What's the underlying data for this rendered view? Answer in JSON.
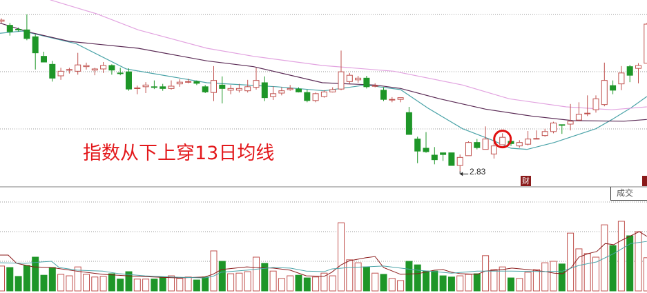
{
  "chart_data": [
    {
      "type": "candlestick",
      "title": "",
      "annotation": "指数从下上穿13日均线",
      "low_label": "2.83",
      "grid": true,
      "colors": {
        "up": "#c0504d",
        "down": "#1e9628",
        "ma13": "#4aa3a8",
        "ma_long": "#5a2a55",
        "ma_longest": "#e2a3e0",
        "highlight": "#e01010"
      },
      "highlight_day": 60,
      "candles_ohlc": [
        [
          3.091,
          3.096,
          3.088,
          3.093
        ],
        [
          3.084,
          3.088,
          3.066,
          3.073
        ],
        [
          3.077,
          3.08,
          3.073,
          3.076
        ],
        [
          3.076,
          3.103,
          3.058,
          3.061
        ],
        [
          3.064,
          3.068,
          3.007,
          3.036
        ],
        [
          3.03,
          3.038,
          3.02,
          3.02
        ],
        [
          3.016,
          3.022,
          2.986,
          2.992
        ],
        [
          2.996,
          3.01,
          2.989,
          3.004
        ],
        [
          3.006,
          3.01,
          3.0,
          3.007
        ],
        [
          3.004,
          3.036,
          2.998,
          3.015
        ],
        [
          3.012,
          3.019,
          3.007,
          3.014
        ],
        [
          3.006,
          3.01,
          2.997,
          3.008
        ],
        [
          3.008,
          3.02,
          3.001,
          3.014
        ],
        [
          3.014,
          3.016,
          2.998,
          3.006
        ],
        [
          3.001,
          3.01,
          2.997,
          3.0
        ],
        [
          3.003,
          3.009,
          2.97,
          2.973
        ],
        [
          2.974,
          2.979,
          2.964,
          2.975
        ],
        [
          2.977,
          2.985,
          2.966,
          2.98
        ],
        [
          2.977,
          2.988,
          2.973,
          2.976
        ],
        [
          2.977,
          2.982,
          2.97,
          2.974
        ],
        [
          2.974,
          2.988,
          2.972,
          2.978
        ],
        [
          2.982,
          2.99,
          2.977,
          2.985
        ],
        [
          2.985,
          2.991,
          2.983,
          2.986
        ],
        [
          2.986,
          2.988,
          2.98,
          2.983
        ],
        [
          2.977,
          2.98,
          2.966,
          2.968
        ],
        [
          2.967,
          3.013,
          2.952,
          2.988
        ],
        [
          2.98,
          2.995,
          2.948,
          2.974
        ],
        [
          2.971,
          2.98,
          2.964,
          2.974
        ],
        [
          2.971,
          2.982,
          2.967,
          2.974
        ],
        [
          2.97,
          2.989,
          2.967,
          2.977
        ],
        [
          2.976,
          3.01,
          2.972,
          2.988
        ],
        [
          2.984,
          2.995,
          2.952,
          2.958
        ],
        [
          2.96,
          2.978,
          2.954,
          2.965
        ],
        [
          2.966,
          2.976,
          2.962,
          2.97
        ],
        [
          2.972,
          2.98,
          2.97,
          2.974
        ],
        [
          2.973,
          2.976,
          2.967,
          2.968
        ],
        [
          2.967,
          2.972,
          2.95,
          2.953
        ],
        [
          2.953,
          2.967,
          2.95,
          2.965
        ],
        [
          2.96,
          2.971,
          2.958,
          2.968
        ],
        [
          2.968,
          2.976,
          2.967,
          2.972
        ],
        [
          2.973,
          3.04,
          2.971,
          3.003
        ],
        [
          2.986,
          3.001,
          2.982,
          2.997
        ],
        [
          2.989,
          2.996,
          2.984,
          2.992
        ],
        [
          2.992,
          2.996,
          2.974,
          2.977
        ],
        [
          2.978,
          2.983,
          2.976,
          2.979
        ],
        [
          2.971,
          2.976,
          2.952,
          2.955
        ],
        [
          2.954,
          2.959,
          2.95,
          2.955
        ],
        [
          2.955,
          2.958,
          2.95,
          2.958
        ],
        [
          2.932,
          2.942,
          2.894,
          2.894
        ],
        [
          2.886,
          2.89,
          2.844,
          2.865
        ],
        [
          2.87,
          2.898,
          2.862,
          2.864
        ],
        [
          2.858,
          2.872,
          2.842,
          2.85
        ],
        [
          2.862,
          2.862,
          2.848,
          2.859
        ],
        [
          2.862,
          2.862,
          2.84,
          2.84
        ],
        [
          2.84,
          2.859,
          2.83,
          2.854
        ],
        [
          2.857,
          2.882,
          2.857,
          2.88
        ],
        [
          2.88,
          2.886,
          2.868,
          2.871
        ],
        [
          2.868,
          2.908,
          2.868,
          2.886
        ],
        [
          2.86,
          2.884,
          2.852,
          2.874
        ],
        [
          2.876,
          2.896,
          2.876,
          2.889
        ],
        [
          2.882,
          2.883,
          2.874,
          2.878
        ],
        [
          2.874,
          2.884,
          2.871,
          2.88
        ],
        [
          2.877,
          2.9,
          2.875,
          2.886
        ],
        [
          2.886,
          2.901,
          2.886,
          2.887
        ],
        [
          2.892,
          2.904,
          2.89,
          2.899
        ],
        [
          2.899,
          2.916,
          2.896,
          2.914
        ],
        [
          2.911,
          2.911,
          2.895,
          2.91
        ],
        [
          2.912,
          2.947,
          2.901,
          2.917
        ],
        [
          2.919,
          2.95,
          2.917,
          2.929
        ],
        [
          2.93,
          2.962,
          2.926,
          2.931
        ],
        [
          2.937,
          2.962,
          2.932,
          2.956
        ],
        [
          2.946,
          3.019,
          2.943,
          2.988
        ],
        [
          2.979,
          2.988,
          2.964,
          2.971
        ],
        [
          2.982,
          3.013,
          2.971,
          3.001
        ],
        [
          3.012,
          3.015,
          2.985,
          2.997
        ],
        [
          3.009,
          3.018,
          2.983,
          3.014
        ],
        [
          3.018,
          3.088,
          3.018,
          3.086
        ]
      ],
      "moving_averages": [
        {
          "role": "ma13",
          "points": [
            [
              0.8,
              3.07
            ],
            [
              3.5,
              3.074
            ],
            [
              9.8,
              3.052
            ],
            [
              15.7,
              3.008
            ],
            [
              25.2,
              2.984
            ],
            [
              33.4,
              2.977
            ],
            [
              39.0,
              2.97
            ],
            [
              43.9,
              2.98
            ],
            [
              48.0,
              2.972
            ],
            [
              51.2,
              2.94
            ],
            [
              55.3,
              2.904
            ],
            [
              58.8,
              2.884
            ],
            [
              61.0,
              2.87
            ],
            [
              62.9,
              2.868
            ],
            [
              66.1,
              2.88
            ],
            [
              71.0,
              2.904
            ],
            [
              72.9,
              2.92
            ],
            [
              75.1,
              2.94
            ],
            [
              77.0,
              2.96
            ]
          ]
        },
        {
          "role": "ma_long",
          "points": [
            [
              0.8,
              3.088
            ],
            [
              4.3,
              3.072
            ],
            [
              9.0,
              3.056
            ],
            [
              17.1,
              3.044
            ],
            [
              25.2,
              3.022
            ],
            [
              30.7,
              3.012
            ],
            [
              38.8,
              2.984
            ],
            [
              45.0,
              2.98
            ],
            [
              48.0,
              2.974
            ],
            [
              52.6,
              2.956
            ],
            [
              58.0,
              2.938
            ],
            [
              63.4,
              2.926
            ],
            [
              68.3,
              2.918
            ],
            [
              74.3,
              2.917
            ],
            [
              77.0,
              2.92
            ]
          ]
        },
        {
          "role": "ma_longest",
          "points": [
            [
              5.5,
              3.145
            ],
            [
              6.8,
              3.128
            ],
            [
              12.2,
              3.104
            ],
            [
              17.1,
              3.076
            ],
            [
              25.2,
              3.044
            ],
            [
              30.7,
              3.03
            ],
            [
              38.8,
              3.014
            ],
            [
              47.2,
              3.004
            ],
            [
              55.3,
              2.98
            ],
            [
              60.8,
              2.956
            ],
            [
              67.5,
              2.942
            ],
            [
              72.9,
              2.937
            ],
            [
              77.0,
              2.942
            ]
          ]
        }
      ]
    },
    {
      "type": "bar",
      "title": "",
      "label": "成交",
      "grid": true,
      "volumes": [
        8.4,
        7.9,
        4.9,
        8.6,
        11.4,
        5.3,
        7.9,
        5.6,
        5.1,
        8.1,
        5.6,
        4.7,
        4.9,
        5.8,
        4.0,
        6.5,
        4.0,
        4.0,
        4.0,
        4.7,
        5.1,
        4.2,
        4.7,
        3.7,
        4.7,
        13.5,
        10.0,
        5.8,
        6.0,
        6.5,
        11.4,
        9.3,
        6.7,
        4.2,
        5.1,
        5.3,
        4.4,
        4.7,
        6.0,
        5.1,
        23.0,
        10.5,
        9.5,
        8.1,
        6.0,
        5.6,
        4.2,
        3.5,
        10.0,
        8.8,
        6.7,
        6.7,
        5.1,
        4.7,
        5.1,
        5.6,
        5.8,
        11.9,
        7.2,
        8.1,
        4.4,
        4.2,
        6.3,
        7.2,
        9.5,
        10.0,
        9.1,
        19.5,
        14.2,
        12.6,
        11.4,
        22.3,
        15.3,
        23.5,
        18.6,
        20.0,
        11.2
      ],
      "moving_averages": [
        {
          "role": "vol_ma_short",
          "color": "#8b1a1a",
          "points": [
            [
              0.8,
              12.1
            ],
            [
              1.8,
              12.1
            ],
            [
              2.8,
              9.3
            ],
            [
              4.8,
              8.1
            ],
            [
              6.9,
              7.9
            ],
            [
              9.8,
              6.7
            ],
            [
              12.9,
              5.6
            ],
            [
              15.9,
              5.1
            ],
            [
              18.9,
              4.7
            ],
            [
              21.9,
              4.4
            ],
            [
              24.9,
              4.7
            ],
            [
              25.9,
              5.6
            ],
            [
              26.9,
              7.2
            ],
            [
              29.9,
              8.1
            ],
            [
              30.9,
              7.9
            ],
            [
              33.0,
              7.7
            ],
            [
              35.0,
              7.0
            ],
            [
              36.9,
              5.1
            ],
            [
              39.0,
              4.9
            ],
            [
              39.9,
              6.3
            ],
            [
              41.0,
              8.8
            ],
            [
              42.0,
              10.2
            ],
            [
              43.9,
              11.2
            ],
            [
              45.0,
              11.6
            ],
            [
              46.0,
              7.9
            ],
            [
              48.0,
              5.6
            ],
            [
              50.0,
              5.8
            ],
            [
              52.0,
              7.0
            ],
            [
              53.0,
              7.2
            ],
            [
              54.0,
              6.3
            ],
            [
              55.1,
              5.8
            ],
            [
              57.0,
              5.6
            ],
            [
              58.0,
              6.7
            ],
            [
              60.0,
              7.2
            ],
            [
              61.1,
              7.7
            ],
            [
              63.0,
              7.2
            ],
            [
              65.1,
              6.5
            ],
            [
              66.1,
              6.0
            ],
            [
              67.1,
              5.8
            ],
            [
              68.1,
              7.9
            ],
            [
              69.0,
              11.4
            ],
            [
              70.1,
              12.6
            ],
            [
              71.1,
              13.3
            ],
            [
              72.1,
              16.0
            ],
            [
              73.1,
              15.6
            ],
            [
              74.1,
              17.2
            ],
            [
              75.1,
              18.6
            ],
            [
              76.1,
              20.0
            ],
            [
              77.0,
              18.4
            ]
          ]
        },
        {
          "role": "vol_ma_long",
          "color": "#4aa3a8",
          "points": [
            [
              0.8,
              9.5
            ],
            [
              3.8,
              9.3
            ],
            [
              5.8,
              9.8
            ],
            [
              6.9,
              10.0
            ],
            [
              7.8,
              7.9
            ],
            [
              9.9,
              7.0
            ],
            [
              12.9,
              6.7
            ],
            [
              14.9,
              5.8
            ],
            [
              17.9,
              5.1
            ],
            [
              20.9,
              4.7
            ],
            [
              24.9,
              4.4
            ],
            [
              25.9,
              4.9
            ],
            [
              26.9,
              6.3
            ],
            [
              29.9,
              7.0
            ],
            [
              33.0,
              7.9
            ],
            [
              35.0,
              7.7
            ],
            [
              36.9,
              6.7
            ],
            [
              39.0,
              6.5
            ],
            [
              39.9,
              7.4
            ],
            [
              42.0,
              7.9
            ],
            [
              46.0,
              8.4
            ],
            [
              50.0,
              7.0
            ],
            [
              54.0,
              6.0
            ],
            [
              57.0,
              6.7
            ],
            [
              61.1,
              6.7
            ],
            [
              65.1,
              6.5
            ],
            [
              67.1,
              6.7
            ],
            [
              69.0,
              8.6
            ],
            [
              71.1,
              9.8
            ],
            [
              73.1,
              12.6
            ],
            [
              75.1,
              16.0
            ],
            [
              77.0,
              16.7
            ]
          ]
        }
      ]
    }
  ],
  "markers": {
    "finance_badge": "财"
  }
}
